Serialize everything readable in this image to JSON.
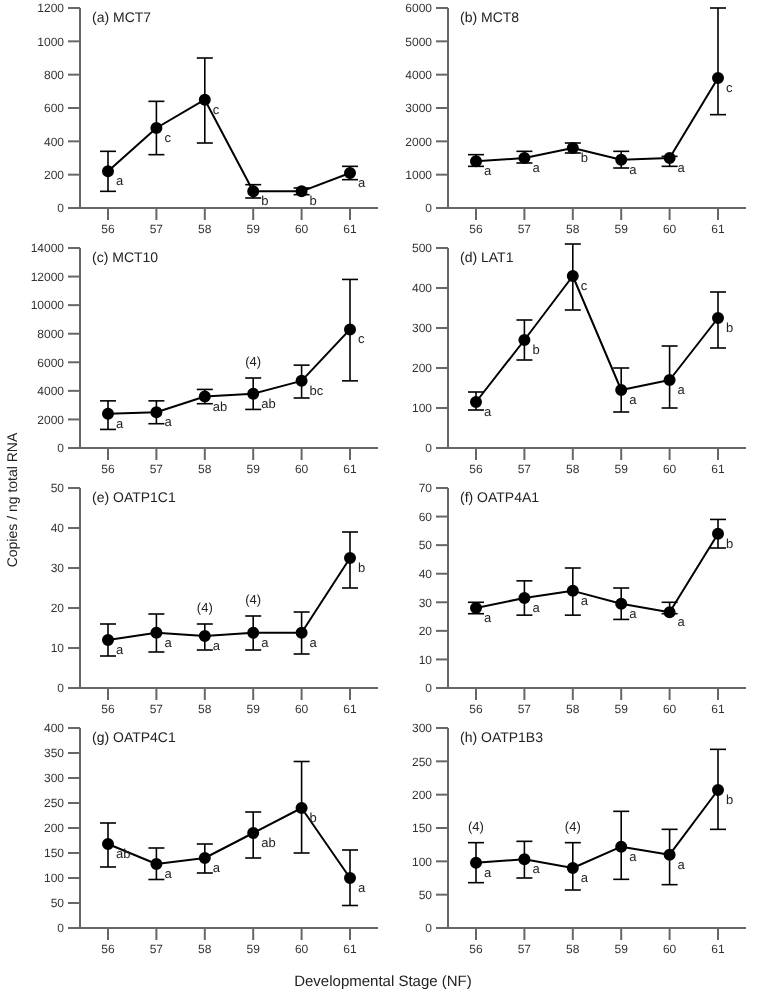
{
  "chart_data": [
    {
      "type": "line",
      "title": "(a) MCT7",
      "categories": [
        "56",
        "57",
        "58",
        "59",
        "60",
        "61"
      ],
      "marker": "circle",
      "line_style": "solid",
      "grid": false,
      "legend": false,
      "series": [
        {
          "color": "#000000",
          "values": [
            220,
            480,
            650,
            100,
            100,
            210
          ],
          "errors": [
            [
              100,
              340
            ],
            [
              320,
              640
            ],
            [
              390,
              900
            ],
            [
              60,
              140
            ],
            [
              80,
              120
            ],
            [
              170,
              250
            ]
          ]
        }
      ],
      "ylim": [
        0,
        1200
      ],
      "yticks": [
        0,
        200,
        400,
        600,
        800,
        1000,
        1200
      ],
      "annotations": [
        {
          "text": "a",
          "x": "56",
          "y": 220
        },
        {
          "text": "c",
          "x": "57",
          "y": 480
        },
        {
          "text": "c",
          "x": "58",
          "y": 650
        },
        {
          "text": "b",
          "x": "59",
          "y": 100
        },
        {
          "text": "b",
          "x": "60",
          "y": 100
        },
        {
          "text": "a",
          "x": "61",
          "y": 210
        }
      ]
    },
    {
      "type": "line",
      "title": "(b) MCT8",
      "categories": [
        "56",
        "57",
        "58",
        "59",
        "60",
        "61"
      ],
      "marker": "circle",
      "line_style": "solid",
      "grid": false,
      "legend": false,
      "series": [
        {
          "color": "#000000",
          "values": [
            1400,
            1500,
            1800,
            1450,
            1500,
            3900
          ],
          "errors": [
            [
              1250,
              1600
            ],
            [
              1350,
              1700
            ],
            [
              1650,
              1950
            ],
            [
              1200,
              1700
            ],
            [
              1250,
              1550
            ],
            [
              2800,
              6000
            ]
          ]
        }
      ],
      "ylim": [
        0,
        6000
      ],
      "yticks": [
        0,
        1000,
        2000,
        3000,
        4000,
        5000,
        6000
      ],
      "annotations": [
        {
          "text": "a",
          "x": "56",
          "y": 1400
        },
        {
          "text": "a",
          "x": "57",
          "y": 1500
        },
        {
          "text": "b",
          "x": "58",
          "y": 1800
        },
        {
          "text": "a",
          "x": "59",
          "y": 1450
        },
        {
          "text": "a",
          "x": "60",
          "y": 1500
        },
        {
          "text": "c",
          "x": "61",
          "y": 3900
        }
      ]
    },
    {
      "type": "line",
      "title": "(c) MCT10",
      "categories": [
        "56",
        "57",
        "58",
        "59",
        "60",
        "61"
      ],
      "marker": "circle",
      "line_style": "solid",
      "grid": false,
      "legend": false,
      "series": [
        {
          "color": "#000000",
          "values": [
            2400,
            2500,
            3600,
            3800,
            4700,
            8300
          ],
          "errors": [
            [
              1300,
              3300
            ],
            [
              1700,
              3300
            ],
            [
              3100,
              4100
            ],
            [
              2700,
              4900
            ],
            [
              3500,
              5800
            ],
            [
              4700,
              11800
            ]
          ]
        }
      ],
      "ylim": [
        0,
        14000
      ],
      "yticks": [
        0,
        2000,
        4000,
        6000,
        8000,
        10000,
        12000,
        14000
      ],
      "annotations": [
        {
          "text": "a",
          "x": "56",
          "y": 2400
        },
        {
          "text": "a",
          "x": "57",
          "y": 2500
        },
        {
          "text": "ab",
          "x": "58",
          "y": 3600
        },
        {
          "text": "ab",
          "x": "59",
          "y": 3800
        },
        {
          "text": "bc",
          "x": "60",
          "y": 4700
        },
        {
          "text": "c",
          "x": "61",
          "y": 8300
        },
        {
          "text": "(4)",
          "x": "59",
          "y": 4900
        }
      ]
    },
    {
      "type": "line",
      "title": "(d) LAT1",
      "categories": [
        "56",
        "57",
        "58",
        "59",
        "60",
        "61"
      ],
      "marker": "circle",
      "line_style": "solid",
      "grid": false,
      "legend": false,
      "series": [
        {
          "color": "#000000",
          "values": [
            115,
            270,
            430,
            145,
            170,
            325
          ],
          "errors": [
            [
              95,
              140
            ],
            [
              220,
              320
            ],
            [
              345,
              510
            ],
            [
              90,
              200
            ],
            [
              100,
              255
            ],
            [
              250,
              390
            ]
          ]
        }
      ],
      "ylim": [
        0,
        500
      ],
      "yticks": [
        0,
        100,
        200,
        300,
        400,
        500
      ],
      "annotations": [
        {
          "text": "a",
          "x": "56",
          "y": 115
        },
        {
          "text": "b",
          "x": "57",
          "y": 270
        },
        {
          "text": "c",
          "x": "58",
          "y": 430
        },
        {
          "text": "a",
          "x": "59",
          "y": 145
        },
        {
          "text": "a",
          "x": "60",
          "y": 170
        },
        {
          "text": "b",
          "x": "61",
          "y": 325
        }
      ]
    },
    {
      "type": "line",
      "title": "(e) OATP1C1",
      "ylabel": "Copies / ng total RNA",
      "categories": [
        "56",
        "57",
        "58",
        "59",
        "60",
        "61"
      ],
      "marker": "circle",
      "line_style": "solid",
      "grid": false,
      "legend": false,
      "series": [
        {
          "color": "#000000",
          "values": [
            12,
            13.8,
            13,
            13.8,
            13.8,
            32.5
          ],
          "errors": [
            [
              8,
              16
            ],
            [
              9,
              18.5
            ],
            [
              9.5,
              16
            ],
            [
              9.5,
              18
            ],
            [
              8.5,
              19
            ],
            [
              25,
              39
            ]
          ]
        }
      ],
      "ylim": [
        0,
        50
      ],
      "yticks": [
        0,
        10,
        20,
        30,
        40,
        50
      ],
      "annotations": [
        {
          "text": "a",
          "x": "56",
          "y": 12
        },
        {
          "text": "a",
          "x": "57",
          "y": 13.8
        },
        {
          "text": "a",
          "x": "58",
          "y": 13
        },
        {
          "text": "a",
          "x": "59",
          "y": 13.8
        },
        {
          "text": "a",
          "x": "60",
          "y": 13.8
        },
        {
          "text": "b",
          "x": "61",
          "y": 32.5
        },
        {
          "text": "(4)",
          "x": "58",
          "y": 16
        },
        {
          "text": "(4)",
          "x": "59",
          "y": 18
        }
      ]
    },
    {
      "type": "line",
      "title": "(f) OATP4A1",
      "categories": [
        "56",
        "57",
        "58",
        "59",
        "60",
        "61"
      ],
      "marker": "circle",
      "line_style": "solid",
      "grid": false,
      "legend": false,
      "series": [
        {
          "color": "#000000",
          "values": [
            28,
            31.5,
            34,
            29.5,
            26.5,
            54
          ],
          "errors": [
            [
              26,
              30
            ],
            [
              25.5,
              37.5
            ],
            [
              25.5,
              42
            ],
            [
              24,
              35
            ],
            [
              26,
              30
            ],
            [
              49,
              59
            ]
          ]
        }
      ],
      "ylim": [
        0,
        70
      ],
      "yticks": [
        0,
        10,
        20,
        30,
        40,
        50,
        60,
        70
      ],
      "annotations": [
        {
          "text": "a",
          "x": "56",
          "y": 28
        },
        {
          "text": "a",
          "x": "57",
          "y": 31.5
        },
        {
          "text": "a",
          "x": "58",
          "y": 34
        },
        {
          "text": "a",
          "x": "59",
          "y": 29.5
        },
        {
          "text": "a",
          "x": "60",
          "y": 26.5
        },
        {
          "text": "b",
          "x": "61",
          "y": 54
        }
      ]
    },
    {
      "type": "line",
      "title": "(g) OATP4C1",
      "xlabel": "Developmental Stage (NF)",
      "categories": [
        "56",
        "57",
        "58",
        "59",
        "60",
        "61"
      ],
      "marker": "circle",
      "line_style": "solid",
      "grid": false,
      "legend": false,
      "series": [
        {
          "color": "#000000",
          "values": [
            168,
            128,
            140,
            190,
            240,
            100
          ],
          "errors": [
            [
              122,
              210
            ],
            [
              97,
              160
            ],
            [
              110,
              168
            ],
            [
              140,
              232
            ],
            [
              150,
              333
            ],
            [
              45,
              156
            ]
          ]
        }
      ],
      "ylim": [
        0,
        400
      ],
      "yticks": [
        0,
        50,
        100,
        150,
        200,
        250,
        300,
        350,
        400
      ],
      "annotations": [
        {
          "text": "ab",
          "x": "56",
          "y": 168
        },
        {
          "text": "a",
          "x": "57",
          "y": 128
        },
        {
          "text": "a",
          "x": "58",
          "y": 140
        },
        {
          "text": "ab",
          "x": "59",
          "y": 190
        },
        {
          "text": "b",
          "x": "60",
          "y": 240
        },
        {
          "text": "a",
          "x": "61",
          "y": 100
        }
      ]
    },
    {
      "type": "line",
      "title": "(h) OATP1B3",
      "categories": [
        "56",
        "57",
        "58",
        "59",
        "60",
        "61"
      ],
      "marker": "circle",
      "line_style": "solid",
      "grid": false,
      "legend": false,
      "series": [
        {
          "color": "#000000",
          "values": [
            98,
            103,
            90,
            122,
            110,
            207
          ],
          "errors": [
            [
              68,
              128
            ],
            [
              75,
              130
            ],
            [
              57,
              128
            ],
            [
              73,
              175
            ],
            [
              65,
              148
            ],
            [
              148,
              268
            ]
          ]
        }
      ],
      "ylim": [
        0,
        300
      ],
      "yticks": [
        0,
        50,
        100,
        150,
        200,
        250,
        300
      ],
      "annotations": [
        {
          "text": "a",
          "x": "56",
          "y": 98
        },
        {
          "text": "a",
          "x": "57",
          "y": 103
        },
        {
          "text": "a",
          "x": "58",
          "y": 90
        },
        {
          "text": "a",
          "x": "59",
          "y": 122
        },
        {
          "text": "a",
          "x": "60",
          "y": 110
        },
        {
          "text": "b",
          "x": "61",
          "y": 207
        },
        {
          "text": "(4)",
          "x": "56",
          "y": 128
        },
        {
          "text": "(4)",
          "x": "58",
          "y": 128
        }
      ]
    }
  ]
}
